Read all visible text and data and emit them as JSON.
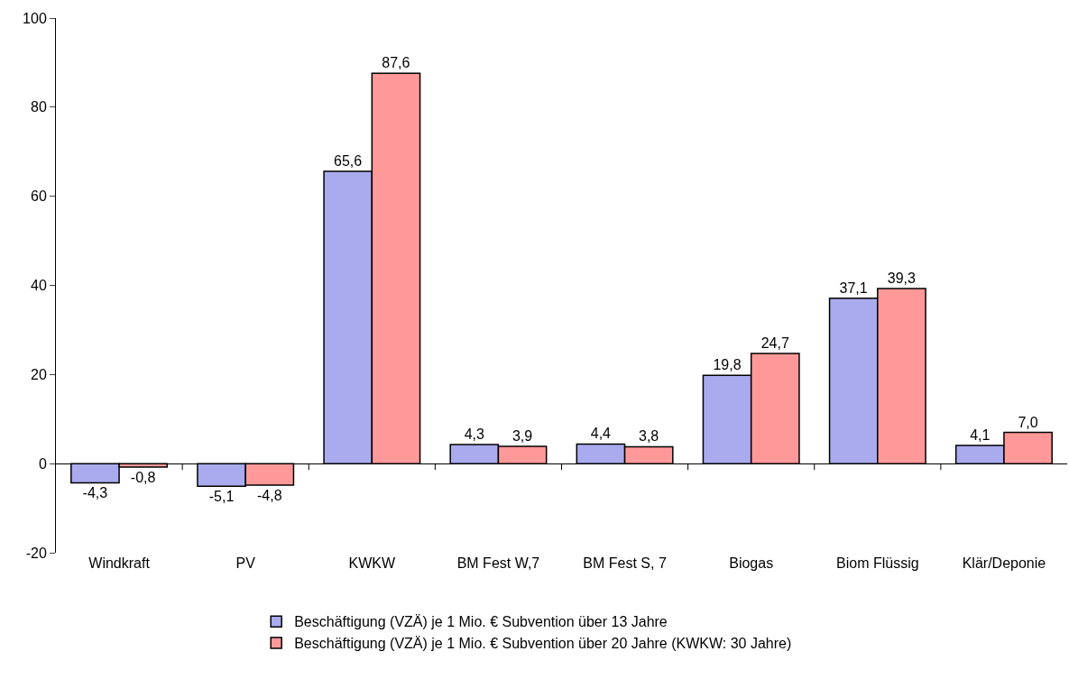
{
  "chart_data": {
    "type": "bar",
    "categories": [
      "Windkraft",
      "PV",
      "KWKW",
      "BM Fest W,7",
      "BM Fest S, 7",
      "Biogas",
      "Biom Flüssig",
      "Klär/Deponie"
    ],
    "series": [
      {
        "name": "Beschäftigung (VZÄ) je 1 Mio. € Subvention über 13 Jahre",
        "color": "#aaaaee",
        "values": [
          -4.3,
          -5.1,
          65.6,
          4.3,
          4.4,
          19.8,
          37.1,
          4.1
        ],
        "value_labels": [
          "-4,3",
          "-5,1",
          "65,6",
          "4,3",
          "4,4",
          "19,8",
          "37,1",
          "4,1"
        ]
      },
      {
        "name": "Beschäftigung (VZÄ) je 1 Mio. € Subvention über 20 Jahre (KWKW: 30 Jahre)",
        "color": "#ff9999",
        "values": [
          -0.8,
          -4.8,
          87.6,
          3.9,
          3.8,
          24.7,
          39.3,
          7.0
        ],
        "value_labels": [
          "-0,8",
          "-4,8",
          "87,6",
          "3,9",
          "3,8",
          "24,7",
          "39,3",
          "7,0"
        ]
      }
    ],
    "ylim": [
      -20,
      100
    ],
    "yticks": [
      -20,
      0,
      20,
      40,
      60,
      80,
      100
    ],
    "legend": "bottom"
  }
}
